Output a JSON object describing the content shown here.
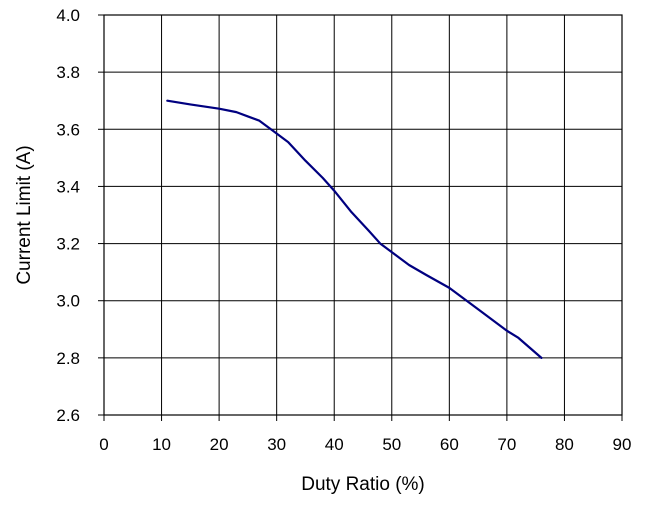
{
  "chart_data": {
    "type": "line",
    "title": "",
    "xlabel": "Duty Ratio (%)",
    "ylabel": "Current Limit (A)",
    "xlim": [
      0,
      90
    ],
    "ylim": [
      2.6,
      4.0
    ],
    "xticks": [
      0,
      10,
      20,
      30,
      40,
      50,
      60,
      70,
      80,
      90
    ],
    "yticks": [
      2.6,
      2.8,
      3.0,
      3.2,
      3.4,
      3.6,
      3.8,
      4.0
    ],
    "xtick_labels": [
      "0",
      "10",
      "20",
      "30",
      "40",
      "50",
      "60",
      "70",
      "80",
      "90"
    ],
    "ytick_labels": [
      "2.6",
      "2.8",
      "3.0",
      "3.2",
      "3.4",
      "3.6",
      "3.8",
      "4.0"
    ],
    "grid": true,
    "legend": "none",
    "series": [
      {
        "color": "#000080",
        "x": [
          11,
          15,
          20,
          23,
          25,
          27,
          29,
          32,
          35,
          38,
          40,
          43,
          46,
          48,
          50,
          53,
          56,
          60,
          65,
          70,
          72,
          74,
          76
        ],
        "y": [
          3.7,
          3.687,
          3.672,
          3.66,
          3.645,
          3.63,
          3.6,
          3.555,
          3.49,
          3.43,
          3.385,
          3.31,
          3.245,
          3.2,
          3.17,
          3.125,
          3.09,
          3.045,
          2.97,
          2.895,
          2.87,
          2.835,
          2.8
        ]
      }
    ]
  }
}
